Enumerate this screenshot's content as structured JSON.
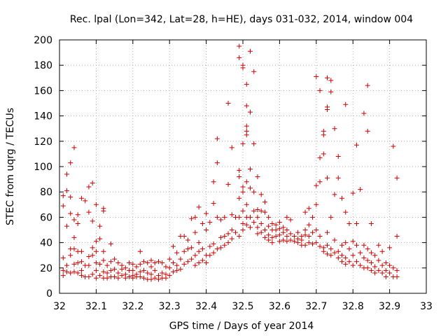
{
  "chart_data": {
    "type": "scatter",
    "title": "Rec. lpal (Lon=342, Lat=28, h=HE), days 031-032, 2014, window 004",
    "xlabel": "GPS time / Days of year 2014",
    "ylabel": "STEC from uqrg / TECUs",
    "xlim": [
      32,
      33
    ],
    "ylim": [
      0,
      200
    ],
    "xticks": [
      "32",
      "32.1",
      "32.2",
      "32.3",
      "32.4",
      "32.5",
      "32.6",
      "32.7",
      "32.8",
      "32.9",
      "33"
    ],
    "yticks": [
      "0",
      "20",
      "40",
      "60",
      "80",
      "100",
      "120",
      "140",
      "160",
      "180",
      "200"
    ],
    "grid": true,
    "marker": "+",
    "color": "#cc0000",
    "points": [
      [
        32.01,
        77
      ],
      [
        32.01,
        69
      ],
      [
        32.01,
        28
      ],
      [
        32.01,
        18
      ],
      [
        32.01,
        14
      ],
      [
        32.02,
        94
      ],
      [
        32.02,
        81
      ],
      [
        32.02,
        53
      ],
      [
        32.02,
        22
      ],
      [
        32.02,
        17
      ],
      [
        32.03,
        103
      ],
      [
        32.03,
        76
      ],
      [
        32.03,
        63
      ],
      [
        32.03,
        35
      ],
      [
        32.03,
        30
      ],
      [
        32.03,
        16
      ],
      [
        32.04,
        115
      ],
      [
        32.04,
        58
      ],
      [
        32.04,
        44
      ],
      [
        32.04,
        35
      ],
      [
        32.04,
        23
      ],
      [
        32.04,
        17
      ],
      [
        32.05,
        62
      ],
      [
        32.05,
        55
      ],
      [
        32.05,
        33
      ],
      [
        32.05,
        24
      ],
      [
        32.05,
        16
      ],
      [
        32.06,
        75
      ],
      [
        32.06,
        33
      ],
      [
        32.06,
        25
      ],
      [
        32.06,
        18
      ],
      [
        32.06,
        14
      ],
      [
        32.07,
        73
      ],
      [
        32.07,
        22
      ],
      [
        32.07,
        13
      ],
      [
        32.08,
        84
      ],
      [
        32.08,
        64
      ],
      [
        32.08,
        29
      ],
      [
        32.08,
        22
      ],
      [
        32.08,
        13
      ],
      [
        32.09,
        87
      ],
      [
        32.09,
        57
      ],
      [
        32.09,
        36
      ],
      [
        32.09,
        30
      ],
      [
        32.09,
        15
      ],
      [
        32.1,
        70
      ],
      [
        32.1,
        41
      ],
      [
        32.1,
        33
      ],
      [
        32.1,
        24
      ],
      [
        32.1,
        18
      ],
      [
        32.1,
        12
      ],
      [
        32.11,
        53
      ],
      [
        32.11,
        43
      ],
      [
        32.11,
        23
      ],
      [
        32.11,
        14
      ],
      [
        32.12,
        67
      ],
      [
        32.12,
        65
      ],
      [
        32.12,
        33
      ],
      [
        32.12,
        26
      ],
      [
        32.12,
        17
      ],
      [
        32.12,
        12
      ],
      [
        32.13,
        22
      ],
      [
        32.13,
        16
      ],
      [
        32.13,
        12
      ],
      [
        32.14,
        39
      ],
      [
        32.14,
        25
      ],
      [
        32.14,
        18
      ],
      [
        32.14,
        13
      ],
      [
        32.15,
        27
      ],
      [
        32.15,
        19
      ],
      [
        32.15,
        13
      ],
      [
        32.16,
        24
      ],
      [
        32.16,
        16
      ],
      [
        32.16,
        12
      ],
      [
        32.17,
        22
      ],
      [
        32.17,
        19
      ],
      [
        32.17,
        14
      ],
      [
        32.18,
        20
      ],
      [
        32.18,
        15
      ],
      [
        32.18,
        12
      ],
      [
        32.19,
        24
      ],
      [
        32.19,
        18
      ],
      [
        32.19,
        13
      ],
      [
        32.2,
        23
      ],
      [
        32.2,
        18
      ],
      [
        32.2,
        14
      ],
      [
        32.2,
        12
      ],
      [
        32.21,
        21
      ],
      [
        32.21,
        15
      ],
      [
        32.21,
        13
      ],
      [
        32.22,
        33
      ],
      [
        32.22,
        23
      ],
      [
        32.22,
        17
      ],
      [
        32.22,
        13
      ],
      [
        32.23,
        25
      ],
      [
        32.23,
        18
      ],
      [
        32.23,
        12
      ],
      [
        32.24,
        24
      ],
      [
        32.24,
        16
      ],
      [
        32.24,
        11
      ],
      [
        32.25,
        26
      ],
      [
        32.25,
        21
      ],
      [
        32.25,
        15
      ],
      [
        32.25,
        11
      ],
      [
        32.26,
        24
      ],
      [
        32.26,
        18
      ],
      [
        32.26,
        12
      ],
      [
        32.27,
        25
      ],
      [
        32.27,
        14
      ],
      [
        32.27,
        11
      ],
      [
        32.28,
        24
      ],
      [
        32.28,
        16
      ],
      [
        32.28,
        12
      ],
      [
        32.29,
        21
      ],
      [
        32.29,
        15
      ],
      [
        32.29,
        12
      ],
      [
        32.3,
        27
      ],
      [
        32.3,
        20
      ],
      [
        32.3,
        14
      ],
      [
        32.31,
        37
      ],
      [
        32.31,
        24
      ],
      [
        32.31,
        17
      ],
      [
        32.32,
        32
      ],
      [
        32.32,
        22
      ],
      [
        32.32,
        18
      ],
      [
        32.33,
        45
      ],
      [
        32.33,
        27
      ],
      [
        32.33,
        19
      ],
      [
        32.34,
        45
      ],
      [
        32.34,
        33
      ],
      [
        32.34,
        23
      ],
      [
        32.35,
        42
      ],
      [
        32.35,
        35
      ],
      [
        32.35,
        25
      ],
      [
        32.36,
        59
      ],
      [
        32.36,
        36
      ],
      [
        32.36,
        27
      ],
      [
        32.37,
        60
      ],
      [
        32.37,
        48
      ],
      [
        32.37,
        30
      ],
      [
        32.37,
        22
      ],
      [
        32.38,
        68
      ],
      [
        32.38,
        40
      ],
      [
        32.38,
        33
      ],
      [
        32.38,
        24
      ],
      [
        32.39,
        55
      ],
      [
        32.39,
        35
      ],
      [
        32.39,
        26
      ],
      [
        32.4,
        63
      ],
      [
        32.4,
        50
      ],
      [
        32.4,
        30
      ],
      [
        32.4,
        24
      ],
      [
        32.41,
        56
      ],
      [
        32.41,
        37
      ],
      [
        32.41,
        30
      ],
      [
        32.42,
        88
      ],
      [
        32.42,
        71
      ],
      [
        32.42,
        39
      ],
      [
        32.42,
        32
      ],
      [
        32.43,
        122
      ],
      [
        32.43,
        103
      ],
      [
        32.43,
        60
      ],
      [
        32.43,
        35
      ],
      [
        32.44,
        58
      ],
      [
        32.44,
        44
      ],
      [
        32.44,
        36
      ],
      [
        32.45,
        60
      ],
      [
        32.45,
        45
      ],
      [
        32.45,
        38
      ],
      [
        32.46,
        150
      ],
      [
        32.46,
        86
      ],
      [
        32.46,
        47
      ],
      [
        32.46,
        40
      ],
      [
        32.47,
        115
      ],
      [
        32.47,
        62
      ],
      [
        32.47,
        50
      ],
      [
        32.47,
        43
      ],
      [
        32.48,
        60
      ],
      [
        32.48,
        48
      ],
      [
        32.49,
        195
      ],
      [
        32.49,
        186
      ],
      [
        32.49,
        97
      ],
      [
        32.49,
        92
      ],
      [
        32.49,
        75
      ],
      [
        32.49,
        60
      ],
      [
        32.49,
        45
      ],
      [
        32.5,
        180
      ],
      [
        32.5,
        178
      ],
      [
        32.5,
        118
      ],
      [
        32.5,
        84
      ],
      [
        32.5,
        80
      ],
      [
        32.5,
        65
      ],
      [
        32.5,
        55
      ],
      [
        32.5,
        50
      ],
      [
        32.51,
        165
      ],
      [
        32.51,
        148
      ],
      [
        32.51,
        132
      ],
      [
        32.51,
        128
      ],
      [
        32.51,
        125
      ],
      [
        32.51,
        88
      ],
      [
        32.51,
        70
      ],
      [
        32.51,
        60
      ],
      [
        32.51,
        54
      ],
      [
        32.52,
        191
      ],
      [
        32.52,
        143
      ],
      [
        32.52,
        98
      ],
      [
        32.52,
        83
      ],
      [
        32.52,
        60
      ],
      [
        32.52,
        52
      ],
      [
        32.53,
        175
      ],
      [
        32.53,
        118
      ],
      [
        32.53,
        80
      ],
      [
        32.53,
        65
      ],
      [
        32.53,
        56
      ],
      [
        32.54,
        92
      ],
      [
        32.54,
        66
      ],
      [
        32.54,
        60
      ],
      [
        32.54,
        52
      ],
      [
        32.54,
        47
      ],
      [
        32.55,
        78
      ],
      [
        32.55,
        65
      ],
      [
        32.55,
        55
      ],
      [
        32.55,
        48
      ],
      [
        32.56,
        72
      ],
      [
        32.56,
        64
      ],
      [
        32.56,
        50
      ],
      [
        32.56,
        44
      ],
      [
        32.57,
        60
      ],
      [
        32.57,
        53
      ],
      [
        32.57,
        46
      ],
      [
        32.57,
        42
      ],
      [
        32.58,
        55
      ],
      [
        32.58,
        50
      ],
      [
        32.58,
        44
      ],
      [
        32.58,
        40
      ],
      [
        32.59,
        54
      ],
      [
        32.59,
        50
      ],
      [
        32.59,
        45
      ],
      [
        32.6,
        56
      ],
      [
        32.6,
        51
      ],
      [
        32.6,
        46
      ],
      [
        32.6,
        41
      ],
      [
        32.61,
        52
      ],
      [
        32.61,
        48
      ],
      [
        32.61,
        42
      ],
      [
        32.62,
        60
      ],
      [
        32.62,
        50
      ],
      [
        32.62,
        45
      ],
      [
        32.62,
        41
      ],
      [
        32.63,
        58
      ],
      [
        32.63,
        47
      ],
      [
        32.63,
        42
      ],
      [
        32.64,
        45
      ],
      [
        32.64,
        41
      ],
      [
        32.65,
        48
      ],
      [
        32.65,
        43
      ],
      [
        32.65,
        40
      ],
      [
        32.66,
        45
      ],
      [
        32.66,
        42
      ],
      [
        32.66,
        38
      ],
      [
        32.67,
        64
      ],
      [
        32.67,
        50
      ],
      [
        32.67,
        46
      ],
      [
        32.67,
        38
      ],
      [
        32.68,
        67
      ],
      [
        32.68,
        54
      ],
      [
        32.68,
        45
      ],
      [
        32.68,
        40
      ],
      [
        32.69,
        60
      ],
      [
        32.69,
        48
      ],
      [
        32.69,
        39
      ],
      [
        32.7,
        171
      ],
      [
        32.7,
        85
      ],
      [
        32.7,
        70
      ],
      [
        32.7,
        50
      ],
      [
        32.7,
        40
      ],
      [
        32.71,
        160
      ],
      [
        32.71,
        107
      ],
      [
        32.71,
        88
      ],
      [
        32.71,
        45
      ],
      [
        32.71,
        37
      ],
      [
        32.72,
        128
      ],
      [
        32.72,
        125
      ],
      [
        32.72,
        110
      ],
      [
        32.72,
        36
      ],
      [
        32.72,
        33
      ],
      [
        32.73,
        170
      ],
      [
        32.73,
        147
      ],
      [
        32.73,
        145
      ],
      [
        32.73,
        91
      ],
      [
        32.73,
        48
      ],
      [
        32.73,
        38
      ],
      [
        32.73,
        31
      ],
      [
        32.74,
        168
      ],
      [
        32.74,
        159
      ],
      [
        32.74,
        60
      ],
      [
        32.74,
        35
      ],
      [
        32.74,
        30
      ],
      [
        32.75,
        130
      ],
      [
        32.75,
        78
      ],
      [
        32.75,
        42
      ],
      [
        32.75,
        32
      ],
      [
        32.76,
        108
      ],
      [
        32.76,
        91
      ],
      [
        32.76,
        33
      ],
      [
        32.76,
        28
      ],
      [
        32.77,
        75
      ],
      [
        32.77,
        38
      ],
      [
        32.77,
        30
      ],
      [
        32.77,
        25
      ],
      [
        32.78,
        149
      ],
      [
        32.78,
        64
      ],
      [
        32.78,
        40
      ],
      [
        32.78,
        28
      ],
      [
        32.78,
        23
      ],
      [
        32.79,
        55
      ],
      [
        32.79,
        35
      ],
      [
        32.79,
        25
      ],
      [
        32.8,
        79
      ],
      [
        32.8,
        41
      ],
      [
        32.8,
        30
      ],
      [
        32.8,
        22
      ],
      [
        32.81,
        117
      ],
      [
        32.81,
        55
      ],
      [
        32.81,
        38
      ],
      [
        32.81,
        25
      ],
      [
        32.82,
        82
      ],
      [
        32.82,
        32
      ],
      [
        32.82,
        22
      ],
      [
        32.83,
        142
      ],
      [
        32.83,
        38
      ],
      [
        32.83,
        28
      ],
      [
        32.83,
        20
      ],
      [
        32.84,
        164
      ],
      [
        32.84,
        128
      ],
      [
        32.84,
        35
      ],
      [
        32.84,
        26
      ],
      [
        32.84,
        20
      ],
      [
        32.85,
        55
      ],
      [
        32.85,
        32
      ],
      [
        32.85,
        24
      ],
      [
        32.85,
        18
      ],
      [
        32.86,
        30
      ],
      [
        32.86,
        21
      ],
      [
        32.86,
        16
      ],
      [
        32.87,
        38
      ],
      [
        32.87,
        26
      ],
      [
        32.87,
        18
      ],
      [
        32.88,
        33
      ],
      [
        32.88,
        22
      ],
      [
        32.88,
        16
      ],
      [
        32.89,
        24
      ],
      [
        32.89,
        18
      ],
      [
        32.89,
        13
      ],
      [
        32.9,
        36
      ],
      [
        32.9,
        22
      ],
      [
        32.9,
        16
      ],
      [
        32.91,
        116
      ],
      [
        32.91,
        20
      ],
      [
        32.91,
        13
      ],
      [
        32.92,
        91
      ],
      [
        32.92,
        45
      ],
      [
        32.92,
        18
      ],
      [
        32.92,
        13
      ]
    ]
  }
}
